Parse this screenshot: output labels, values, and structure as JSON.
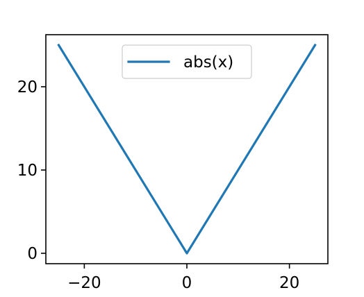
{
  "chart_data": {
    "type": "line",
    "title": "",
    "xlabel": "",
    "ylabel": "",
    "xlim": [
      -27.5,
      27.5
    ],
    "ylim": [
      -1.25,
      26.25
    ],
    "x_ticks": [
      -20,
      0,
      20
    ],
    "y_ticks": [
      0,
      10,
      20
    ],
    "x_tick_labels": [
      "−20",
      "0",
      "20"
    ],
    "y_tick_labels": [
      "0",
      "10",
      "20"
    ],
    "grid": false,
    "legend": {
      "position": "top-center"
    },
    "series": [
      {
        "name": "abs(x)",
        "color": "#1f77b4",
        "x": [
          -25,
          0,
          25
        ],
        "y": [
          25,
          0,
          25
        ]
      }
    ]
  }
}
